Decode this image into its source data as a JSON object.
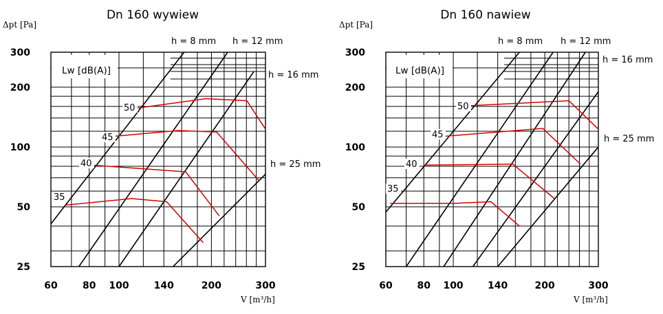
{
  "chart_data": [
    {
      "type": "line",
      "title": "Dn 160 wywiew",
      "xlabel": "V [m³/h]",
      "ylabel": "Δpt [Pa]",
      "xscale": "log",
      "yscale": "log",
      "xlim": [
        60,
        300
      ],
      "ylim": [
        25,
        300
      ],
      "x_ticks": [
        60,
        80,
        100,
        140,
        200,
        300
      ],
      "y_ticks": [
        25,
        50,
        100,
        200,
        300
      ],
      "legend_title": "Lw [dB(A)]",
      "damper_lines": [
        {
          "name": "h = 8 mm",
          "points": [
            [
              60,
              41
            ],
            [
              163,
              300
            ]
          ]
        },
        {
          "name": "h = 12 mm",
          "points": [
            [
              74,
              25
            ],
            [
              226,
              300
            ]
          ]
        },
        {
          "name": "h = 16 mm",
          "points": [
            [
              100,
              25
            ],
            [
              275,
              240
            ]
          ]
        },
        {
          "name": "h = 25 mm",
          "points": [
            [
              150,
              25
            ],
            [
              300,
              73
            ]
          ]
        }
      ],
      "sound_curves": [
        {
          "name": "35",
          "points": [
            [
              67,
              51
            ],
            [
              110,
              55
            ],
            [
              143,
              53
            ],
            [
              188,
              33
            ]
          ]
        },
        {
          "name": "40",
          "points": [
            [
              82,
              81
            ],
            [
              165,
              75
            ],
            [
              212,
              45
            ]
          ]
        },
        {
          "name": "45",
          "points": [
            [
              95,
              113
            ],
            [
              156,
              121
            ],
            [
              208,
              119
            ],
            [
              285,
              68
            ]
          ]
        },
        {
          "name": "50",
          "points": [
            [
              115,
              157
            ],
            [
              192,
              175
            ],
            [
              261,
              171
            ],
            [
              300,
              123
            ]
          ]
        }
      ]
    },
    {
      "type": "line",
      "title": "Dn 160 nawiew",
      "xlabel": "V [m³/h]",
      "ylabel": "Δpt [Pa]",
      "xscale": "log",
      "yscale": "log",
      "xlim": [
        60,
        300
      ],
      "ylim": [
        25,
        300
      ],
      "x_ticks": [
        60,
        80,
        100,
        140,
        200,
        300
      ],
      "y_ticks": [
        25,
        50,
        100,
        200,
        300
      ],
      "legend_title": "Lw [dB(A)]",
      "damper_lines": [
        {
          "name": "h = 8 mm",
          "points": [
            [
              60,
              47
            ],
            [
              165,
              300
            ]
          ]
        },
        {
          "name": "h = 12 mm",
          "points": [
            [
              70,
              25
            ],
            [
              213,
              300
            ]
          ]
        },
        {
          "name": "h = 16 mm",
          "points": [
            [
              93,
              25
            ],
            [
              272,
              300
            ]
          ]
        },
        {
          "name": "h = 25 mm",
          "points": [
            [
              140,
              25
            ],
            [
              300,
              100
            ]
          ]
        },
        {
          "name": "",
          "points": [
            [
              116,
              25
            ],
            [
              300,
              190
            ]
          ]
        }
      ],
      "sound_curves": [
        {
          "name": "35",
          "points": [
            [
              62,
              52
            ],
            [
              100,
              52
            ],
            [
              133,
              53
            ],
            [
              165,
              40
            ]
          ]
        },
        {
          "name": "40",
          "points": [
            [
              80,
              81
            ],
            [
              157,
              82
            ],
            [
              215,
              55
            ]
          ]
        },
        {
          "name": "45",
          "points": [
            [
              92,
              113
            ],
            [
              197,
              124
            ],
            [
              262,
              82
            ]
          ]
        },
        {
          "name": "50",
          "points": [
            [
              110,
              161
            ],
            [
              240,
              171
            ],
            [
              300,
              123
            ]
          ]
        }
      ]
    }
  ]
}
